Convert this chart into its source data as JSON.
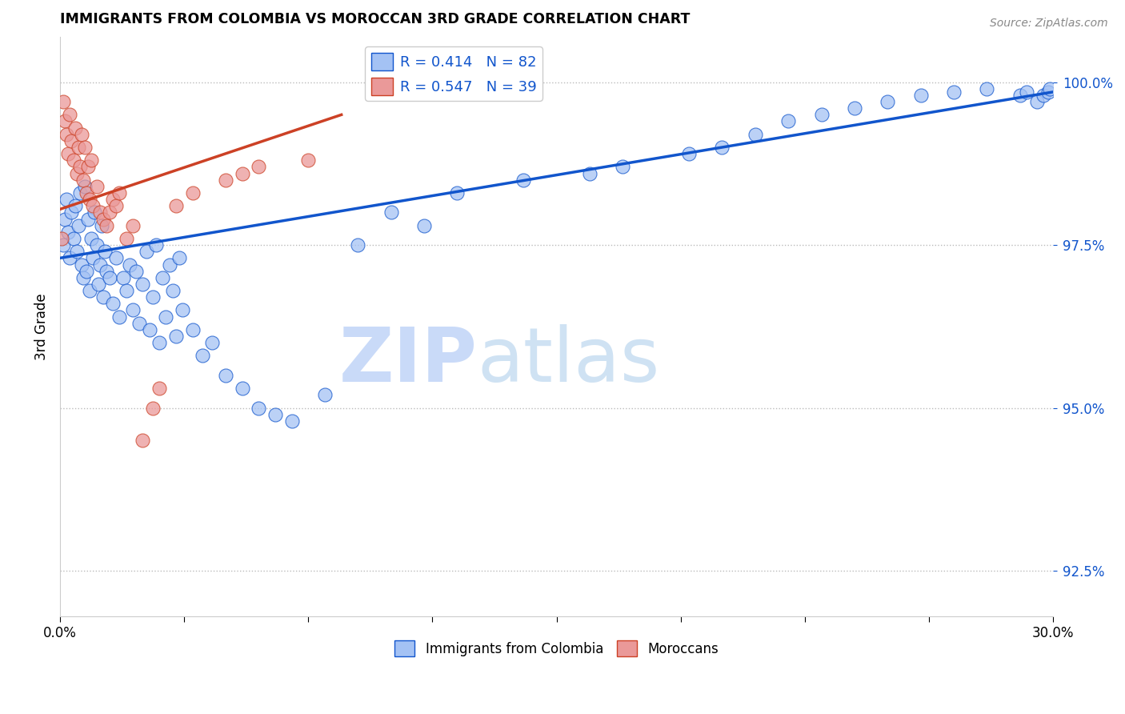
{
  "title": "IMMIGRANTS FROM COLOMBIA VS MOROCCAN 3RD GRADE CORRELATION CHART",
  "source": "Source: ZipAtlas.com",
  "ylabel": "3rd Grade",
  "ytick_values": [
    92.5,
    95.0,
    97.5,
    100.0
  ],
  "xmin": 0.0,
  "xmax": 30.0,
  "ymin": 91.8,
  "ymax": 100.7,
  "legend_R_blue": "R = 0.414",
  "legend_N_blue": "N = 82",
  "legend_R_pink": "R = 0.547",
  "legend_N_pink": "N = 39",
  "blue_color": "#a4c2f4",
  "pink_color": "#ea9999",
  "blue_line_color": "#1155cc",
  "pink_line_color": "#cc4125",
  "watermark_zip": "ZIP",
  "watermark_atlas": "atlas",
  "watermark_color": "#cfe2f3",
  "blue_line_x0": 0.0,
  "blue_line_y0": 97.3,
  "blue_line_x1": 30.0,
  "blue_line_y1": 99.85,
  "pink_line_x0": 0.0,
  "pink_line_y0": 98.05,
  "pink_line_x1": 8.5,
  "pink_line_y1": 99.5,
  "blue_x": [
    0.1,
    0.15,
    0.2,
    0.25,
    0.3,
    0.35,
    0.4,
    0.45,
    0.5,
    0.55,
    0.6,
    0.65,
    0.7,
    0.75,
    0.8,
    0.85,
    0.9,
    0.95,
    1.0,
    1.05,
    1.1,
    1.15,
    1.2,
    1.25,
    1.3,
    1.35,
    1.4,
    1.5,
    1.6,
    1.7,
    1.8,
    1.9,
    2.0,
    2.1,
    2.2,
    2.3,
    2.4,
    2.5,
    2.6,
    2.7,
    2.8,
    2.9,
    3.0,
    3.1,
    3.2,
    3.3,
    3.4,
    3.5,
    3.6,
    3.7,
    4.0,
    4.3,
    4.6,
    5.0,
    5.5,
    6.0,
    6.5,
    7.0,
    8.0,
    9.0,
    10.0,
    12.0,
    14.0,
    17.0,
    19.0,
    20.0,
    21.0,
    22.0,
    23.0,
    24.0,
    25.0,
    26.0,
    27.0,
    28.0,
    29.0,
    29.2,
    29.5,
    29.7,
    29.85,
    29.9,
    11.0,
    16.0
  ],
  "blue_y": [
    97.5,
    97.9,
    98.2,
    97.7,
    97.3,
    98.0,
    97.6,
    98.1,
    97.4,
    97.8,
    98.3,
    97.2,
    97.0,
    98.4,
    97.1,
    97.9,
    96.8,
    97.6,
    97.3,
    98.0,
    97.5,
    96.9,
    97.2,
    97.8,
    96.7,
    97.4,
    97.1,
    97.0,
    96.6,
    97.3,
    96.4,
    97.0,
    96.8,
    97.2,
    96.5,
    97.1,
    96.3,
    96.9,
    97.4,
    96.2,
    96.7,
    97.5,
    96.0,
    97.0,
    96.4,
    97.2,
    96.8,
    96.1,
    97.3,
    96.5,
    96.2,
    95.8,
    96.0,
    95.5,
    95.3,
    95.0,
    94.9,
    94.8,
    95.2,
    97.5,
    98.0,
    98.3,
    98.5,
    98.7,
    98.9,
    99.0,
    99.2,
    99.4,
    99.5,
    99.6,
    99.7,
    99.8,
    99.85,
    99.9,
    99.8,
    99.85,
    99.7,
    99.8,
    99.85,
    99.9,
    97.8,
    98.6
  ],
  "pink_x": [
    0.05,
    0.1,
    0.15,
    0.2,
    0.25,
    0.3,
    0.35,
    0.4,
    0.45,
    0.5,
    0.55,
    0.6,
    0.65,
    0.7,
    0.75,
    0.8,
    0.85,
    0.9,
    0.95,
    1.0,
    1.1,
    1.2,
    1.3,
    1.4,
    1.5,
    1.6,
    1.7,
    1.8,
    2.0,
    2.2,
    2.5,
    2.8,
    3.0,
    3.5,
    4.0,
    5.0,
    5.5,
    6.0,
    7.5
  ],
  "pink_y": [
    97.6,
    99.7,
    99.4,
    99.2,
    98.9,
    99.5,
    99.1,
    98.8,
    99.3,
    98.6,
    99.0,
    98.7,
    99.2,
    98.5,
    99.0,
    98.3,
    98.7,
    98.2,
    98.8,
    98.1,
    98.4,
    98.0,
    97.9,
    97.8,
    98.0,
    98.2,
    98.1,
    98.3,
    97.6,
    97.8,
    94.5,
    95.0,
    95.3,
    98.1,
    98.3,
    98.5,
    98.6,
    98.7,
    98.8
  ]
}
